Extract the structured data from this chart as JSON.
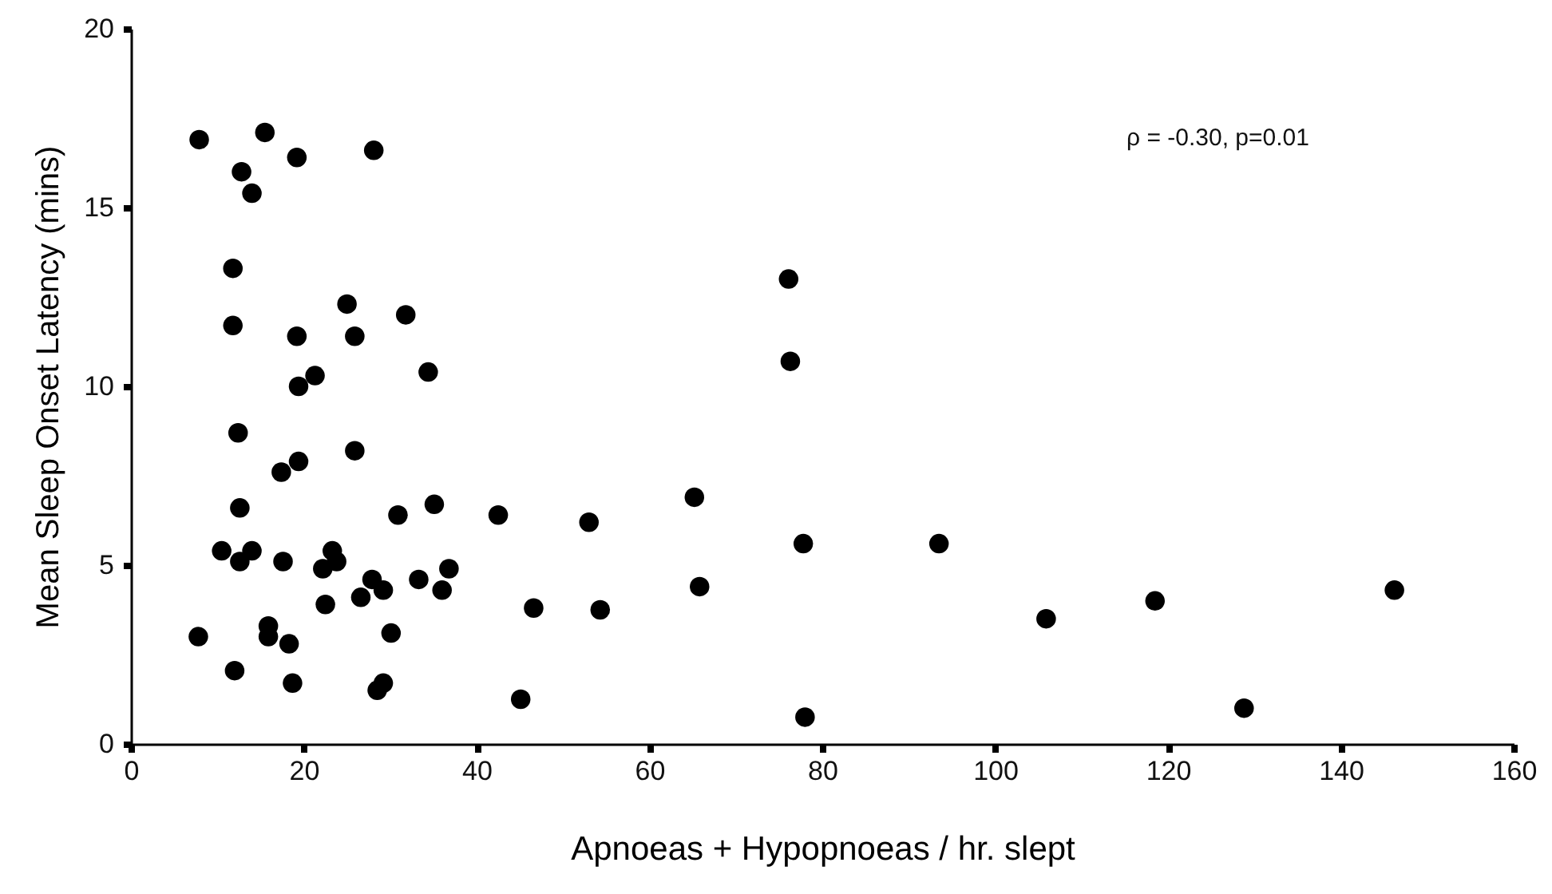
{
  "chart_data": {
    "type": "scatter",
    "xlabel": "Apnoeas + Hypopnoeas / hr. slept",
    "ylabel": "Mean Sleep Onset Latency (mins)",
    "annotations": [
      "ρ = -0.30, p=0.01"
    ],
    "marker": "circle",
    "grid": false,
    "xlim": [
      0,
      160
    ],
    "ylim": [
      0,
      20
    ],
    "xticks": [
      0,
      20,
      40,
      60,
      80,
      100,
      120,
      140,
      160
    ],
    "yticks": [
      0,
      5,
      10,
      15,
      20
    ],
    "series": [
      {
        "color": "#000000",
        "x": [
          7.9,
          12.8,
          14.0,
          15.5,
          19.2,
          28.1,
          11.8,
          11.8,
          19.2,
          21.3,
          19.4,
          12.4,
          31.8,
          25.0,
          25.9,
          34.4,
          25.9,
          19.4,
          17.4,
          12.6,
          30.9,
          35.1,
          42.5,
          53.0,
          10.5,
          12.6,
          14.0,
          17.6,
          22.2,
          23.3,
          23.8,
          36.8,
          27.9,
          29.2,
          33.3,
          36.0,
          26.6,
          22.5,
          46.6,
          54.3,
          7.8,
          15.9,
          15.9,
          18.3,
          30.1,
          12.0,
          18.7,
          29.2,
          28.5,
          45.1,
          76.1,
          76.3,
          65.2,
          77.8,
          93.5,
          65.8,
          105.9,
          118.5,
          146.2,
          78.0,
          128.8
        ],
        "values": [
          16.9,
          16.0,
          15.4,
          17.1,
          16.4,
          16.6,
          13.3,
          11.7,
          11.4,
          10.3,
          10.0,
          8.7,
          12.0,
          12.3,
          11.4,
          10.4,
          8.2,
          7.9,
          7.6,
          6.6,
          6.4,
          6.7,
          6.4,
          6.2,
          5.4,
          5.1,
          5.4,
          5.1,
          4.9,
          5.4,
          5.1,
          4.9,
          4.6,
          4.3,
          4.6,
          4.3,
          4.1,
          3.9,
          3.8,
          3.75,
          3.0,
          3.3,
          3.0,
          2.8,
          3.1,
          2.05,
          1.7,
          1.7,
          1.5,
          1.25,
          13.0,
          10.7,
          6.9,
          5.6,
          5.6,
          4.4,
          3.5,
          4.0,
          4.3,
          0.75,
          1.0
        ]
      }
    ]
  }
}
